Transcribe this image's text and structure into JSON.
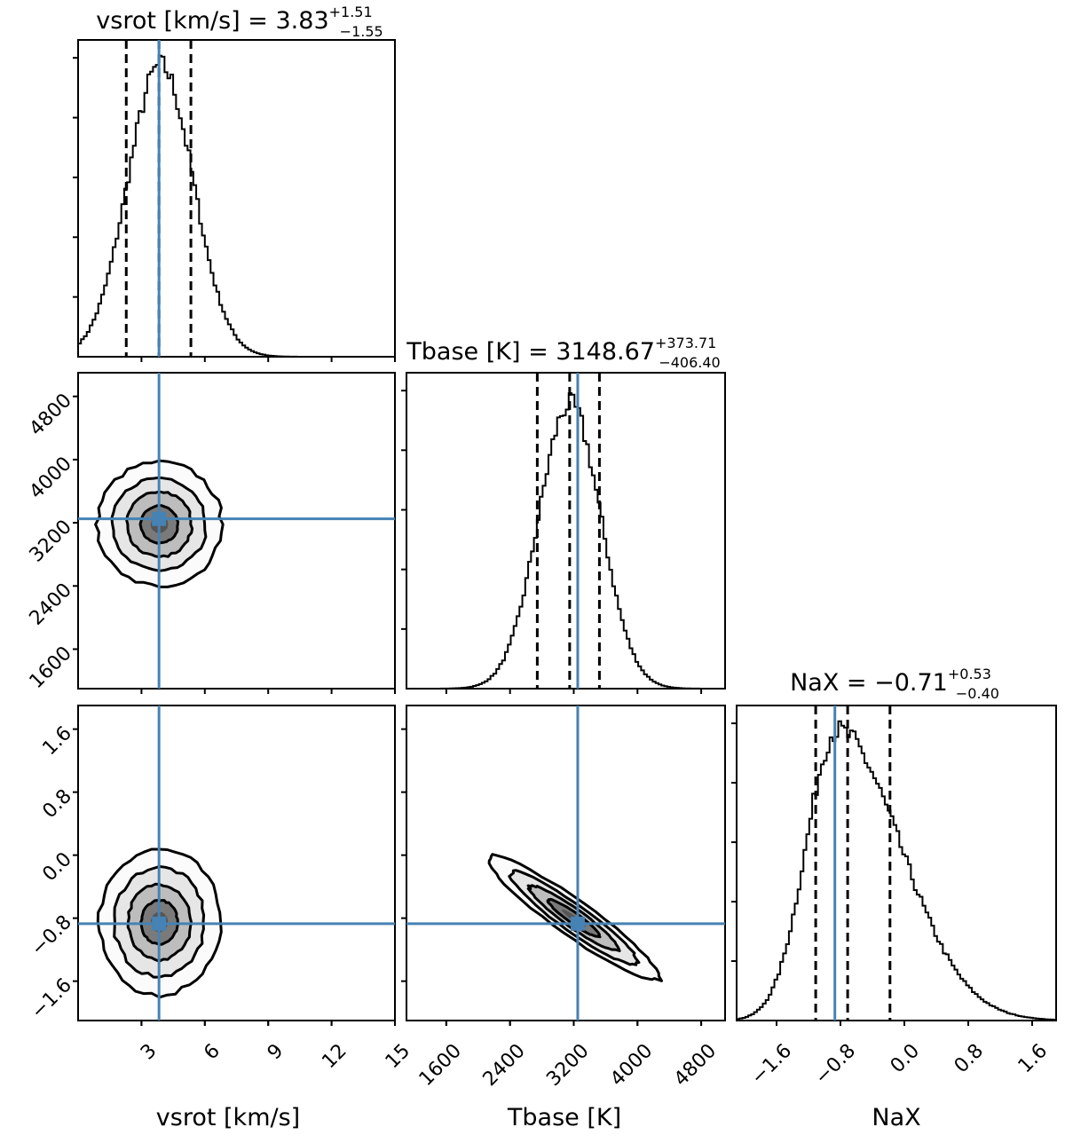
{
  "chart_data": {
    "type": "corner",
    "parameters": [
      {
        "name": "vsrot",
        "label": "vsrot [km/s]",
        "range": [
          0,
          15
        ],
        "ticks": [
          3,
          6,
          9,
          12,
          15
        ],
        "tick_labels": [
          "3",
          "6",
          "9",
          "12",
          "15"
        ],
        "title_prefix": "vsrot [km/s] = ",
        "median": "3.83",
        "plus": "+1.51",
        "minus": "−1.55",
        "quantiles": [
          2.28,
          3.83,
          5.34
        ],
        "truth": 3.83,
        "hist_mean": 3.9,
        "hist_sd": 1.55
      },
      {
        "name": "Tbase",
        "label": "Tbase [K]",
        "range": [
          1100,
          5100
        ],
        "ticks": [
          1600,
          2400,
          3200,
          4000,
          4800
        ],
        "tick_labels": [
          "1600",
          "2400",
          "3200",
          "4000",
          "4800"
        ],
        "title_prefix": "Tbase [K] = ",
        "median": "3148.67",
        "plus": "+373.71",
        "minus": "−406.40",
        "quantiles": [
          2742.27,
          3148.67,
          3522.38
        ],
        "truth": 3250,
        "hist_mean": 3150,
        "hist_sd": 390
      },
      {
        "name": "NaX",
        "label": "NaX",
        "range": [
          -2.1,
          1.9
        ],
        "ticks": [
          -1.6,
          -0.8,
          0.0,
          0.8,
          1.6
        ],
        "tick_labels": [
          "−1.6",
          "−0.8",
          "0.0",
          "0.8",
          "1.6"
        ],
        "title_prefix": "NaX = ",
        "median": "−0.71",
        "plus": "+0.53",
        "minus": "−0.40",
        "quantiles": [
          -1.11,
          -0.71,
          -0.18
        ],
        "truth": -0.87,
        "hist_mean": -0.8,
        "hist_sd": 0.45
      }
    ],
    "truth_color": "#4682b4",
    "contour_color": "#000000",
    "quantile_style": "dashed",
    "grid": false,
    "legend": "none"
  }
}
